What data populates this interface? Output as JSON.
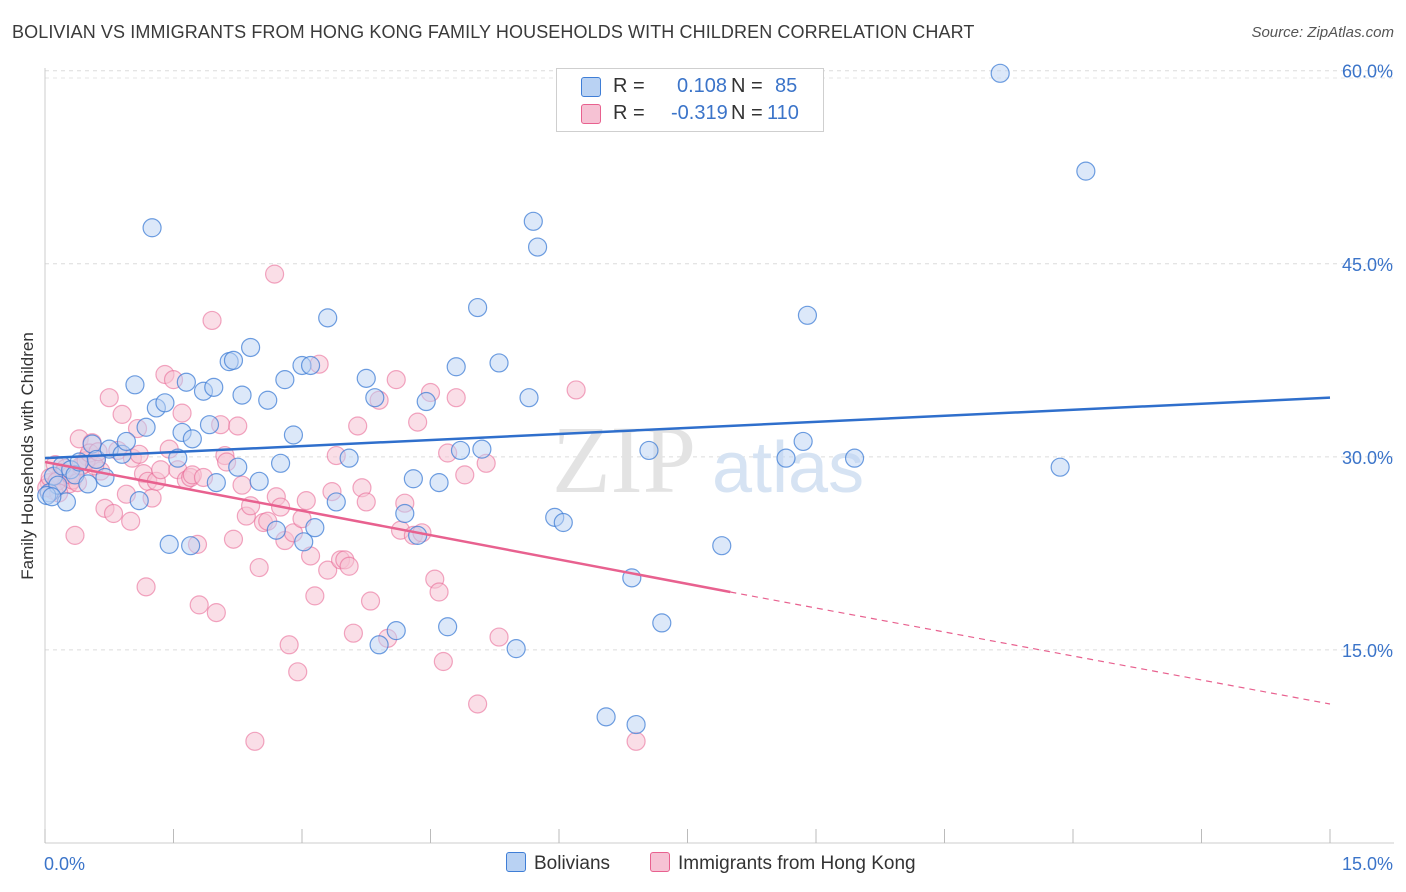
{
  "title": "BOLIVIAN VS IMMIGRANTS FROM HONG KONG FAMILY HOUSEHOLDS WITH CHILDREN CORRELATION CHART",
  "source": "Source: ZipAtlas.com",
  "watermark": {
    "zip": "ZIP",
    "atlas": "atlas"
  },
  "legend": {
    "rows": [
      {
        "r_label": "R =",
        "r_value": "0.108",
        "n_label": "N =",
        "n_value": "85"
      },
      {
        "r_label": "R =",
        "r_value": "-0.319",
        "n_label": "N =",
        "n_value": "110"
      }
    ]
  },
  "bottom_legend": [
    "Bolivians",
    "Immigrants from Hong Kong"
  ],
  "colors": {
    "blue": "#3f7ed6",
    "blue_fill": "#b9d2f3",
    "pink": "#e8618f",
    "pink_fill": "#f6c2d4",
    "accent_text": "#3b74c9"
  },
  "chart_data": {
    "type": "scatter",
    "title": "BOLIVIAN VS IMMIGRANTS FROM HONG KONG FAMILY HOUSEHOLDS WITH CHILDREN CORRELATION CHART",
    "xlabel": "",
    "ylabel": "Family Households with Children",
    "xlim": [
      0,
      15
    ],
    "ylim": [
      0,
      62
    ],
    "x_tick_labels": [
      "0.0%",
      "15.0%"
    ],
    "y_ticks": [
      15,
      30,
      45,
      60
    ],
    "y_tick_labels": [
      "15.0%",
      "30.0%",
      "45.0%",
      "60.0%"
    ],
    "grid": true,
    "series": [
      {
        "name": "Bolivians",
        "color": "#3f7ed6",
        "trend": {
          "x": [
            0,
            15
          ],
          "y": [
            29.9,
            34.6
          ]
        },
        "points": [
          [
            0.05,
            27.2
          ],
          [
            0.1,
            28.5
          ],
          [
            0.15,
            27.8
          ],
          [
            0.2,
            29.3
          ],
          [
            0.25,
            26.5
          ],
          [
            0.3,
            29.0
          ],
          [
            0.35,
            28.6
          ],
          [
            0.4,
            29.6
          ],
          [
            0.5,
            27.9
          ],
          [
            0.55,
            31.0
          ],
          [
            0.6,
            29.8
          ],
          [
            0.7,
            28.4
          ],
          [
            0.75,
            30.6
          ],
          [
            0.9,
            30.2
          ],
          [
            0.95,
            31.2
          ],
          [
            1.05,
            35.6
          ],
          [
            1.1,
            26.6
          ],
          [
            1.18,
            32.3
          ],
          [
            1.25,
            47.8
          ],
          [
            1.3,
            33.8
          ],
          [
            1.4,
            34.2
          ],
          [
            1.45,
            23.2
          ],
          [
            1.55,
            29.9
          ],
          [
            1.6,
            31.9
          ],
          [
            1.65,
            35.8
          ],
          [
            1.7,
            23.1
          ],
          [
            1.72,
            31.4
          ],
          [
            1.85,
            35.1
          ],
          [
            1.92,
            32.5
          ],
          [
            1.97,
            35.4
          ],
          [
            2.0,
            28.0
          ],
          [
            2.15,
            37.4
          ],
          [
            2.2,
            37.5
          ],
          [
            2.25,
            29.2
          ],
          [
            2.3,
            34.8
          ],
          [
            2.4,
            38.5
          ],
          [
            2.5,
            28.1
          ],
          [
            2.6,
            34.4
          ],
          [
            2.7,
            24.3
          ],
          [
            2.75,
            29.5
          ],
          [
            2.8,
            36.0
          ],
          [
            2.9,
            31.7
          ],
          [
            3.0,
            37.1
          ],
          [
            3.02,
            23.4
          ],
          [
            3.1,
            37.1
          ],
          [
            3.15,
            24.5
          ],
          [
            3.3,
            40.8
          ],
          [
            3.4,
            26.5
          ],
          [
            3.55,
            29.9
          ],
          [
            3.75,
            36.1
          ],
          [
            3.85,
            34.6
          ],
          [
            3.9,
            15.4
          ],
          [
            4.1,
            16.5
          ],
          [
            4.2,
            25.6
          ],
          [
            4.3,
            28.3
          ],
          [
            4.35,
            23.9
          ],
          [
            4.45,
            34.3
          ],
          [
            4.6,
            28.0
          ],
          [
            4.7,
            16.8
          ],
          [
            4.8,
            37.0
          ],
          [
            4.85,
            30.5
          ],
          [
            5.05,
            41.6
          ],
          [
            5.1,
            30.6
          ],
          [
            5.3,
            37.3
          ],
          [
            5.5,
            15.1
          ],
          [
            5.65,
            34.6
          ],
          [
            5.7,
            48.3
          ],
          [
            5.75,
            46.3
          ],
          [
            5.95,
            25.3
          ],
          [
            6.05,
            24.9
          ],
          [
            6.55,
            9.8
          ],
          [
            6.85,
            20.6
          ],
          [
            6.9,
            9.2
          ],
          [
            7.05,
            30.5
          ],
          [
            7.2,
            17.1
          ],
          [
            7.9,
            23.1
          ],
          [
            8.65,
            29.9
          ],
          [
            8.85,
            31.2
          ],
          [
            8.9,
            41.0
          ],
          [
            9.45,
            29.9
          ],
          [
            11.15,
            59.8
          ],
          [
            11.85,
            29.2
          ],
          [
            12.15,
            52.2
          ],
          [
            0.02,
            27.0
          ],
          [
            0.08,
            26.9
          ]
        ]
      },
      {
        "name": "Immigrants from Hong Kong",
        "color": "#e8618f",
        "trend": {
          "x": [
            0,
            8.0
          ],
          "y": [
            29.6,
            19.5
          ]
        },
        "trend_dashed": {
          "x": [
            8.0,
            15
          ],
          "y": [
            19.5,
            10.8
          ]
        },
        "points": [
          [
            0.05,
            28.0
          ],
          [
            0.1,
            27.4
          ],
          [
            0.12,
            29.4
          ],
          [
            0.18,
            28.5
          ],
          [
            0.22,
            28.8
          ],
          [
            0.28,
            27.9
          ],
          [
            0.32,
            28.2
          ],
          [
            0.35,
            23.9
          ],
          [
            0.4,
            31.4
          ],
          [
            0.45,
            29.4
          ],
          [
            0.5,
            30.0
          ],
          [
            0.55,
            31.1
          ],
          [
            0.6,
            29.8
          ],
          [
            0.65,
            28.9
          ],
          [
            0.7,
            26.0
          ],
          [
            0.75,
            34.6
          ],
          [
            0.8,
            25.6
          ],
          [
            0.85,
            30.5
          ],
          [
            0.9,
            33.3
          ],
          [
            0.95,
            27.1
          ],
          [
            1.0,
            25.0
          ],
          [
            1.02,
            29.9
          ],
          [
            1.08,
            32.2
          ],
          [
            1.1,
            30.2
          ],
          [
            1.15,
            28.7
          ],
          [
            1.18,
            19.9
          ],
          [
            1.2,
            28.1
          ],
          [
            1.25,
            26.8
          ],
          [
            1.3,
            28.1
          ],
          [
            1.35,
            29.0
          ],
          [
            1.4,
            36.4
          ],
          [
            1.45,
            30.6
          ],
          [
            1.5,
            36.0
          ],
          [
            1.55,
            29.0
          ],
          [
            1.6,
            33.4
          ],
          [
            1.65,
            28.2
          ],
          [
            1.7,
            28.4
          ],
          [
            1.72,
            28.6
          ],
          [
            1.78,
            23.2
          ],
          [
            1.8,
            18.5
          ],
          [
            1.85,
            28.4
          ],
          [
            1.95,
            40.6
          ],
          [
            2.0,
            17.9
          ],
          [
            2.05,
            32.5
          ],
          [
            2.1,
            30.1
          ],
          [
            2.12,
            29.6
          ],
          [
            2.2,
            23.6
          ],
          [
            2.25,
            32.4
          ],
          [
            2.3,
            27.8
          ],
          [
            2.35,
            25.4
          ],
          [
            2.4,
            26.2
          ],
          [
            2.45,
            7.9
          ],
          [
            2.5,
            21.4
          ],
          [
            2.55,
            24.9
          ],
          [
            2.6,
            25.0
          ],
          [
            2.68,
            44.2
          ],
          [
            2.7,
            26.9
          ],
          [
            2.75,
            26.1
          ],
          [
            2.8,
            23.5
          ],
          [
            2.85,
            15.4
          ],
          [
            2.9,
            24.1
          ],
          [
            2.95,
            13.3
          ],
          [
            3.0,
            25.2
          ],
          [
            3.05,
            26.6
          ],
          [
            3.1,
            22.3
          ],
          [
            3.15,
            19.2
          ],
          [
            3.2,
            37.2
          ],
          [
            3.3,
            21.2
          ],
          [
            3.35,
            27.3
          ],
          [
            3.4,
            30.1
          ],
          [
            3.45,
            22.0
          ],
          [
            3.5,
            22.0
          ],
          [
            3.55,
            21.5
          ],
          [
            3.6,
            16.3
          ],
          [
            3.65,
            32.4
          ],
          [
            3.7,
            27.6
          ],
          [
            3.75,
            26.5
          ],
          [
            3.8,
            18.8
          ],
          [
            3.9,
            34.4
          ],
          [
            4.0,
            15.9
          ],
          [
            4.1,
            36.0
          ],
          [
            4.15,
            24.3
          ],
          [
            4.2,
            26.4
          ],
          [
            4.3,
            23.9
          ],
          [
            4.35,
            32.7
          ],
          [
            4.4,
            24.1
          ],
          [
            4.5,
            35.0
          ],
          [
            4.55,
            20.5
          ],
          [
            4.6,
            19.5
          ],
          [
            4.65,
            14.1
          ],
          [
            4.7,
            30.3
          ],
          [
            4.8,
            34.6
          ],
          [
            4.9,
            28.6
          ],
          [
            5.05,
            10.8
          ],
          [
            5.15,
            29.5
          ],
          [
            5.3,
            16.0
          ],
          [
            6.2,
            35.2
          ],
          [
            6.9,
            7.9
          ],
          [
            0.02,
            27.6
          ],
          [
            0.06,
            28.4
          ],
          [
            0.14,
            28.1
          ],
          [
            0.16,
            27.2
          ],
          [
            0.24,
            29.1
          ],
          [
            0.3,
            28.6
          ],
          [
            0.38,
            28.0
          ],
          [
            0.42,
            29.3
          ],
          [
            0.48,
            29.7
          ],
          [
            0.52,
            30.3
          ],
          [
            0.58,
            29.3
          ],
          [
            0.62,
            30.4
          ]
        ]
      }
    ]
  }
}
